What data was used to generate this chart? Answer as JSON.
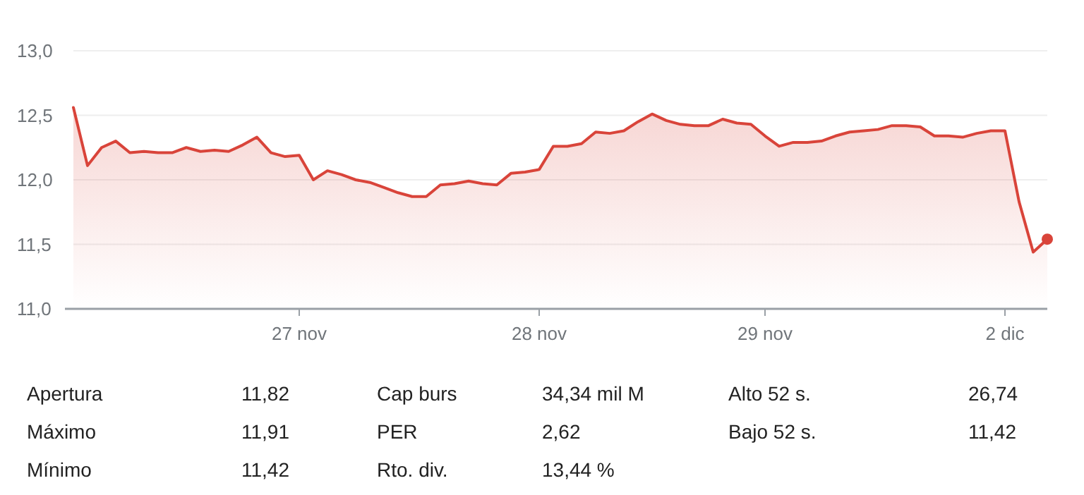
{
  "chart_data": [
    {
      "type": "area",
      "color": "#d9443a",
      "categories": [
        null,
        null,
        null,
        null,
        null,
        null,
        null,
        null,
        null,
        null,
        null,
        null,
        null,
        null,
        null,
        null,
        "27 nov",
        null,
        null,
        null,
        null,
        null,
        null,
        null,
        null,
        null,
        null,
        null,
        null,
        null,
        null,
        null,
        null,
        "28 nov",
        null,
        null,
        null,
        null,
        null,
        null,
        null,
        null,
        null,
        null,
        null,
        null,
        null,
        null,
        null,
        "29 nov",
        null,
        null,
        null,
        null,
        null,
        null,
        null,
        null,
        null,
        null,
        null,
        null,
        null,
        null,
        null,
        null,
        "2 dic",
        null,
        null,
        null
      ],
      "values": [
        12.56,
        12.11,
        12.25,
        12.3,
        12.21,
        12.22,
        12.21,
        12.21,
        12.25,
        12.22,
        12.23,
        12.22,
        12.27,
        12.33,
        12.21,
        12.18,
        12.19,
        12.0,
        12.07,
        12.04,
        12.0,
        11.98,
        11.94,
        11.9,
        11.87,
        11.87,
        11.96,
        11.97,
        11.99,
        11.97,
        11.96,
        12.05,
        12.06,
        12.08,
        12.26,
        12.26,
        12.28,
        12.37,
        12.36,
        12.38,
        12.45,
        12.51,
        12.46,
        12.43,
        12.42,
        12.42,
        12.47,
        12.44,
        12.43,
        12.34,
        12.26,
        12.29,
        12.29,
        12.3,
        12.34,
        12.37,
        12.38,
        12.39,
        12.42,
        12.42,
        12.41,
        12.34,
        12.34,
        12.33,
        12.36,
        12.38,
        12.38,
        11.83,
        11.44,
        11.54
      ],
      "ylim": [
        11,
        13
      ],
      "yticks": [
        {
          "value": 11,
          "label": "11,0"
        },
        {
          "value": 11.5,
          "label": "11,5"
        },
        {
          "value": 12,
          "label": "12,0"
        },
        {
          "value": 12.5,
          "label": "12,5"
        },
        {
          "value": 13,
          "label": "13,0"
        }
      ],
      "grid": "y"
    },
    {
      "type": "other",
      "annotations": [
        "Apertura",
        "11,82",
        "Cap burs",
        "34,34 mil M",
        "Alto 52 s.",
        "26,74",
        "Máximo",
        "11,91",
        "PER",
        "2,62",
        "Bajo 52 s.",
        "11,42",
        "Mínimo",
        "11,42",
        "Rto. div.",
        "13,44 %"
      ]
    }
  ]
}
